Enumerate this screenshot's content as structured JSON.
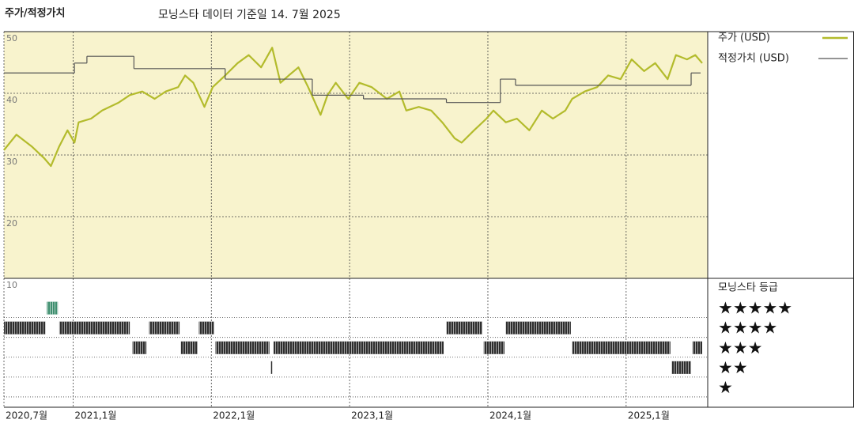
{
  "chart_data": [
    {
      "type": "line",
      "title": "주가/적정가치",
      "subtitle": "모닝스타 데이터 기준일 14. 7월 2025",
      "xlim": [
        2020.5,
        2025.59
      ],
      "xticks": [
        {
          "value": 2020.5,
          "label": "2020,7월"
        },
        {
          "value": 2021.0,
          "label": "2021,1월"
        },
        {
          "value": 2022.0,
          "label": "2022,1월"
        },
        {
          "value": 2023.0,
          "label": "2023,1월"
        },
        {
          "value": 2024.0,
          "label": "2024,1월"
        },
        {
          "value": 2025.0,
          "label": "2025,1월"
        }
      ],
      "ylim": [
        10,
        50
      ],
      "yticks": [
        10,
        20,
        30,
        40,
        50
      ],
      "grid": true,
      "background": "#f8f3cd",
      "series": [
        {
          "name": "주가 (USD)",
          "color": "#b3bb2c",
          "x": [
            2020.5,
            2020.59,
            2020.7,
            2020.79,
            2020.84,
            2020.9,
            2020.96,
            2021.01,
            2021.04,
            2021.13,
            2021.21,
            2021.33,
            2021.41,
            2021.5,
            2021.59,
            2021.67,
            2021.76,
            2021.81,
            2021.87,
            2021.95,
            2022.01,
            2022.1,
            2022.19,
            2022.27,
            2022.36,
            2022.44,
            2022.5,
            2022.56,
            2022.63,
            2022.7,
            2022.79,
            2022.84,
            2022.9,
            2022.99,
            2023.07,
            2023.16,
            2023.27,
            2023.36,
            2023.41,
            2023.5,
            2023.59,
            2023.67,
            2023.76,
            2023.81,
            2023.9,
            2023.99,
            2024.04,
            2024.13,
            2024.21,
            2024.3,
            2024.39,
            2024.47,
            2024.56,
            2024.61,
            2024.7,
            2024.79,
            2024.87,
            2024.96,
            2025.04,
            2025.13,
            2025.21,
            2025.3,
            2025.36,
            2025.44,
            2025.5,
            2025.55
          ],
          "values": [
            30.8,
            33.3,
            31.4,
            29.5,
            28.2,
            31.4,
            34,
            32,
            35.3,
            35.9,
            37.2,
            38.5,
            39.7,
            40.3,
            39.1,
            40.3,
            41,
            42.9,
            41.7,
            37.8,
            41,
            42.9,
            44.9,
            46.2,
            44.2,
            47.4,
            41.7,
            42.9,
            44.2,
            41,
            36.5,
            39.7,
            41.7,
            39.1,
            41.7,
            41,
            39.1,
            40.3,
            37.2,
            37.8,
            37.2,
            35.3,
            32.7,
            32,
            34,
            35.9,
            37.2,
            35.3,
            35.9,
            34,
            37.2,
            35.9,
            37.2,
            39.1,
            40.3,
            41,
            42.9,
            42.3,
            45.5,
            43.6,
            44.9,
            42.3,
            46.2,
            45.5,
            46.2,
            44.9
          ]
        },
        {
          "name": "적정가치 (USD)",
          "color": "#555555",
          "step": true,
          "x": [
            2020.5,
            2021.01,
            2021.1,
            2021.44,
            2022.1,
            2022.73,
            2023.1,
            2023.7,
            2024.09,
            2024.2,
            2025.47
          ],
          "values": [
            43.3,
            44.9,
            46,
            44,
            42.3,
            39.7,
            39.1,
            38.5,
            42.3,
            41.3,
            43.3
          ]
        }
      ]
    },
    {
      "type": "rating",
      "title": "모닝스타 등급",
      "ylim": [
        0,
        6.5
      ],
      "yticks": [
        {
          "value": 5,
          "label": "★★★★★"
        },
        {
          "value": 4,
          "label": "★★★★"
        },
        {
          "value": 3,
          "label": "★★★"
        },
        {
          "value": 2,
          "label": "★★"
        },
        {
          "value": 1,
          "label": "★"
        }
      ],
      "colors": [
        "#3f8f6f",
        "#2e2e2e",
        "#2e2e2e",
        "#2e2e2e",
        "#2e2e2e"
      ],
      "start": [
        2020.5,
        2020.81,
        2020.9,
        2021.43,
        2021.55,
        2021.78,
        2021.91,
        2022.03,
        2022.43,
        2022.45,
        2023.7,
        2023.97,
        2024.13,
        2024.61,
        2025.33,
        2025.48
      ],
      "end": [
        2020.8,
        2020.89,
        2021.41,
        2021.53,
        2021.77,
        2021.9,
        2022.02,
        2022.42,
        2022.44,
        2023.68,
        2023.96,
        2024.12,
        2024.6,
        2025.32,
        2025.47,
        2025.55
      ],
      "values": [
        4,
        5,
        4,
        3,
        4,
        3,
        4,
        3,
        2,
        3,
        4,
        3,
        4,
        3,
        2,
        3
      ]
    }
  ]
}
